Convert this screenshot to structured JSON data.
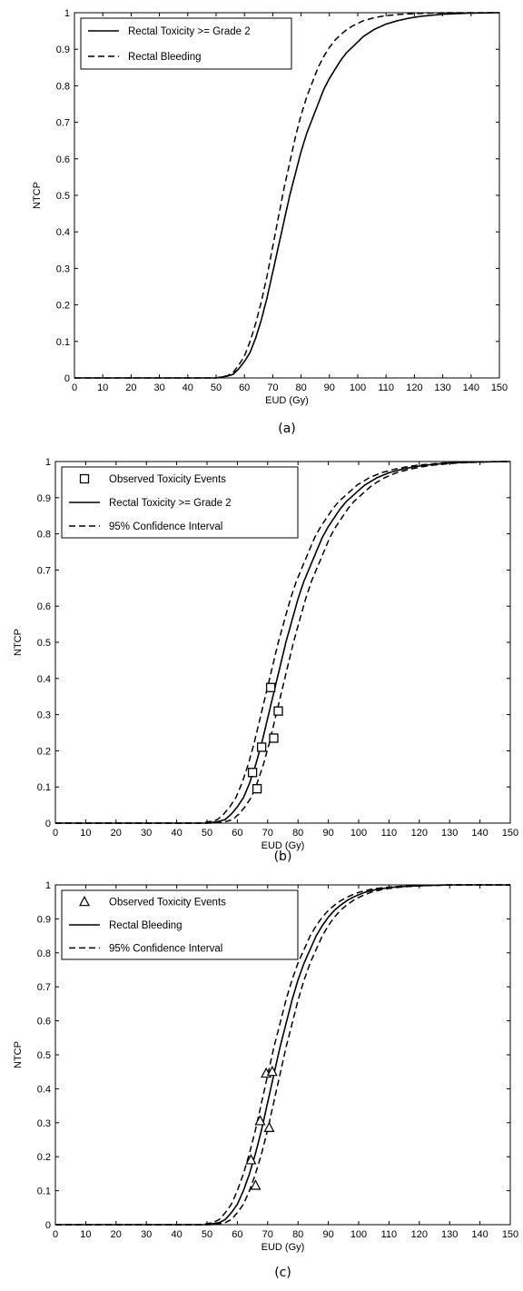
{
  "chart_data": [
    {
      "type": "line",
      "caption": "(a)",
      "xlabel": "EUD (Gy)",
      "ylabel": "NTCP",
      "xlim": [
        0,
        150
      ],
      "ylim": [
        0,
        1
      ],
      "xticks": [
        0,
        10,
        20,
        30,
        40,
        50,
        60,
        70,
        80,
        90,
        100,
        110,
        120,
        130,
        140,
        150
      ],
      "yticks": [
        0,
        0.1,
        0.2,
        0.3,
        0.4,
        0.5,
        0.6,
        0.7,
        0.8,
        0.9,
        1
      ],
      "legend_position": "top-left",
      "series": [
        {
          "name": "Rectal Toxicity >= Grade 2",
          "style": "solid",
          "x": [
            0,
            50,
            54,
            56,
            58,
            60,
            62,
            64,
            66,
            68,
            70,
            72,
            74,
            76,
            78,
            80,
            82,
            84,
            86,
            88,
            90,
            92,
            94,
            96,
            98,
            100,
            102,
            104,
            106,
            108,
            110,
            114,
            118,
            122,
            126,
            130,
            140,
            150
          ],
          "y": [
            0,
            0,
            0.005,
            0.01,
            0.025,
            0.045,
            0.07,
            0.11,
            0.16,
            0.22,
            0.29,
            0.36,
            0.43,
            0.5,
            0.56,
            0.62,
            0.67,
            0.71,
            0.75,
            0.79,
            0.82,
            0.845,
            0.87,
            0.89,
            0.905,
            0.92,
            0.935,
            0.945,
            0.955,
            0.962,
            0.969,
            0.978,
            0.985,
            0.99,
            0.993,
            0.996,
            0.999,
            1.0
          ]
        },
        {
          "name": "Rectal Bleeding",
          "style": "dashed",
          "x": [
            0,
            50,
            54,
            56,
            58,
            60,
            62,
            64,
            66,
            68,
            70,
            72,
            74,
            76,
            78,
            80,
            82,
            84,
            86,
            88,
            90,
            92,
            94,
            96,
            98,
            100,
            102,
            106,
            110,
            114,
            118,
            122,
            126,
            130,
            140,
            150
          ],
          "y": [
            0,
            0,
            0.006,
            0.015,
            0.035,
            0.06,
            0.1,
            0.15,
            0.21,
            0.28,
            0.36,
            0.44,
            0.52,
            0.59,
            0.66,
            0.72,
            0.77,
            0.81,
            0.85,
            0.88,
            0.905,
            0.925,
            0.94,
            0.953,
            0.963,
            0.971,
            0.978,
            0.987,
            0.992,
            0.995,
            0.997,
            0.998,
            0.999,
            1.0,
            1.0,
            1.0
          ]
        }
      ]
    },
    {
      "type": "line",
      "caption": "(b)",
      "xlabel": "EUD (Gy)",
      "ylabel": "NTCP",
      "xlim": [
        0,
        150
      ],
      "ylim": [
        0,
        1
      ],
      "xticks": [
        0,
        10,
        20,
        30,
        40,
        50,
        60,
        70,
        80,
        90,
        100,
        110,
        120,
        130,
        140,
        150
      ],
      "yticks": [
        0,
        0.1,
        0.2,
        0.3,
        0.4,
        0.5,
        0.6,
        0.7,
        0.8,
        0.9,
        1
      ],
      "legend_position": "top-left",
      "legend": [
        "Observed Toxicity Events",
        "Rectal Toxicity >= Grade 2",
        "95% Confidence Interval"
      ],
      "points": {
        "name": "Observed Toxicity Events",
        "marker": "square",
        "x": [
          65,
          66.5,
          68,
          71,
          72,
          73.5
        ],
        "y": [
          0.14,
          0.095,
          0.21,
          0.375,
          0.235,
          0.31
        ]
      },
      "series": [
        {
          "name": "Rectal Toxicity >= Grade 2",
          "style": "solid",
          "x": [
            0,
            50,
            54,
            56,
            58,
            60,
            62,
            64,
            66,
            68,
            70,
            72,
            74,
            76,
            78,
            80,
            82,
            84,
            86,
            88,
            90,
            92,
            94,
            96,
            98,
            100,
            102,
            104,
            106,
            108,
            110,
            114,
            118,
            122,
            126,
            130,
            140,
            150
          ],
          "y": [
            0,
            0,
            0.005,
            0.01,
            0.025,
            0.045,
            0.07,
            0.11,
            0.16,
            0.22,
            0.29,
            0.36,
            0.43,
            0.5,
            0.56,
            0.62,
            0.67,
            0.71,
            0.75,
            0.79,
            0.82,
            0.845,
            0.87,
            0.89,
            0.905,
            0.92,
            0.935,
            0.945,
            0.955,
            0.962,
            0.969,
            0.978,
            0.985,
            0.99,
            0.993,
            0.996,
            0.999,
            1.0
          ]
        },
        {
          "name": "95% Confidence Interval",
          "style": "dashed",
          "shift": -2.5
        },
        {
          "style": "dashed",
          "shift": 2.5
        }
      ]
    },
    {
      "type": "line",
      "caption": "(c)",
      "xlabel": "EUD (Gy)",
      "ylabel": "NTCP",
      "xlim": [
        0,
        150
      ],
      "ylim": [
        0,
        1
      ],
      "xticks": [
        0,
        10,
        20,
        30,
        40,
        50,
        60,
        70,
        80,
        90,
        100,
        110,
        120,
        130,
        140,
        150
      ],
      "yticks": [
        0,
        0.1,
        0.2,
        0.3,
        0.4,
        0.5,
        0.6,
        0.7,
        0.8,
        0.9,
        1
      ],
      "legend_position": "top-left",
      "legend": [
        "Observed Toxicity Events",
        "Rectal Bleeding",
        "95% Confidence Interval"
      ],
      "points": {
        "name": "Observed Toxicity Events",
        "marker": "triangle",
        "x": [
          64.5,
          66,
          67.5,
          69.5,
          70.5,
          71.5
        ],
        "y": [
          0.19,
          0.115,
          0.305,
          0.445,
          0.285,
          0.45
        ]
      },
      "series": [
        {
          "name": "Rectal Bleeding",
          "style": "solid",
          "x": [
            0,
            50,
            54,
            56,
            58,
            60,
            62,
            64,
            66,
            68,
            70,
            72,
            74,
            76,
            78,
            80,
            82,
            84,
            86,
            88,
            90,
            92,
            94,
            96,
            98,
            100,
            102,
            106,
            110,
            114,
            118,
            122,
            126,
            130,
            140,
            150
          ],
          "y": [
            0,
            0,
            0.006,
            0.015,
            0.035,
            0.06,
            0.1,
            0.15,
            0.21,
            0.28,
            0.36,
            0.44,
            0.52,
            0.59,
            0.66,
            0.72,
            0.77,
            0.81,
            0.85,
            0.88,
            0.905,
            0.925,
            0.94,
            0.953,
            0.963,
            0.971,
            0.978,
            0.987,
            0.992,
            0.995,
            0.997,
            0.998,
            0.999,
            1.0,
            1.0,
            1.0
          ]
        },
        {
          "name": "95% Confidence Interval",
          "style": "dashed",
          "shift": -2
        },
        {
          "style": "dashed",
          "shift": 2
        }
      ]
    }
  ]
}
